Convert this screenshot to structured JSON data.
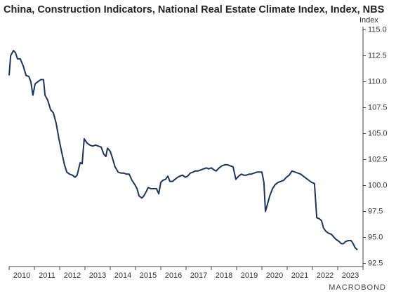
{
  "chart_data": {
    "type": "line",
    "title": "China, Construction Indicators, National Real Estate Climate Index, Index, NBS",
    "y_label": "Index",
    "source": "MACROBOND",
    "color": "#1d3557",
    "x": [
      2010.0,
      2010.06,
      2010.17,
      2010.25,
      2010.33,
      2010.44,
      2010.56,
      2010.67,
      2010.78,
      2010.86,
      2010.94,
      2011.03,
      2011.14,
      2011.25,
      2011.36,
      2011.42,
      2011.53,
      2011.64,
      2011.75,
      2011.86,
      2011.97,
      2012.08,
      2012.19,
      2012.28,
      2012.39,
      2012.5,
      2012.61,
      2012.69,
      2012.81,
      2012.89,
      2012.97,
      2013.08,
      2013.19,
      2013.31,
      2013.42,
      2013.53,
      2013.64,
      2013.75,
      2013.83,
      2013.89,
      2014.0,
      2014.08,
      2014.19,
      2014.31,
      2014.42,
      2014.53,
      2014.64,
      2014.75,
      2014.86,
      2014.97,
      2015.06,
      2015.14,
      2015.25,
      2015.33,
      2015.42,
      2015.5,
      2015.61,
      2015.72,
      2015.83,
      2015.92,
      2016.0,
      2016.08,
      2016.19,
      2016.28,
      2016.36,
      2016.47,
      2016.56,
      2016.67,
      2016.75,
      2016.86,
      2016.97,
      2017.06,
      2017.17,
      2017.28,
      2017.36,
      2017.47,
      2017.58,
      2017.69,
      2017.81,
      2017.89,
      2018.0,
      2018.11,
      2018.19,
      2018.31,
      2018.42,
      2018.53,
      2018.64,
      2018.75,
      2018.86,
      2018.97,
      2019.08,
      2019.19,
      2019.28,
      2019.39,
      2019.5,
      2019.58,
      2019.69,
      2019.81,
      2019.92,
      2020.0,
      2020.08,
      2020.14,
      2020.22,
      2020.31,
      2020.42,
      2020.53,
      2020.64,
      2020.75,
      2020.86,
      2020.97,
      2021.08,
      2021.19,
      2021.31,
      2021.42,
      2021.53,
      2021.64,
      2021.75,
      2021.86,
      2021.97,
      2022.08,
      2022.17,
      2022.28,
      2022.36,
      2022.44,
      2022.53,
      2022.64,
      2022.75,
      2022.86,
      2022.94,
      2023.06,
      2023.14,
      2023.22,
      2023.31,
      2023.42,
      2023.53,
      2023.61,
      2023.69,
      2023.78
    ],
    "values": [
      110.6,
      112.5,
      113.0,
      112.8,
      112.2,
      112.2,
      111.5,
      110.6,
      110.5,
      110.0,
      108.7,
      109.8,
      110.0,
      110.2,
      110.2,
      108.7,
      108.2,
      107.3,
      107.0,
      106.0,
      104.5,
      103.2,
      102.0,
      101.3,
      101.1,
      101.0,
      100.8,
      101.0,
      102.2,
      102.1,
      104.5,
      104.1,
      103.9,
      103.8,
      103.9,
      103.8,
      103.7,
      103.0,
      102.8,
      103.6,
      103.3,
      102.7,
      101.8,
      101.3,
      101.2,
      101.2,
      101.1,
      101.1,
      100.5,
      100.1,
      99.7,
      99.0,
      98.8,
      99.0,
      99.4,
      99.8,
      99.7,
      99.7,
      99.7,
      99.2,
      100.3,
      100.5,
      100.6,
      100.9,
      100.4,
      100.4,
      100.6,
      100.8,
      100.9,
      101.0,
      100.8,
      100.9,
      101.2,
      101.3,
      101.4,
      101.4,
      101.5,
      101.6,
      101.7,
      101.6,
      101.7,
      101.5,
      101.4,
      101.7,
      101.9,
      102.0,
      102.0,
      101.9,
      101.8,
      100.6,
      100.9,
      101.1,
      101.0,
      101.0,
      101.1,
      101.1,
      101.2,
      101.3,
      101.3,
      101.3,
      100.3,
      97.5,
      98.2,
      99.0,
      99.7,
      100.1,
      100.3,
      100.4,
      100.5,
      100.8,
      101.0,
      101.4,
      101.3,
      101.2,
      101.1,
      100.9,
      100.7,
      100.5,
      100.3,
      100.2,
      96.9,
      96.8,
      96.6,
      95.9,
      95.6,
      95.4,
      95.3,
      95.0,
      94.8,
      94.6,
      94.4,
      94.4,
      94.6,
      94.7,
      94.7,
      94.4,
      94.0,
      93.8
    ],
    "xlim": [
      2010,
      2024
    ],
    "xticks": [
      2010,
      2011,
      2012,
      2013,
      2014,
      2015,
      2016,
      2017,
      2018,
      2019,
      2020,
      2021,
      2022,
      2023
    ],
    "ylim": [
      92.2,
      115.3
    ],
    "yticks": [
      92.5,
      {
        "value": 95,
        "label": "95.0"
      },
      97.5,
      {
        "value": 100,
        "label": "100.0"
      },
      102.5,
      {
        "value": 105,
        "label": "105.0"
      },
      107.5,
      {
        "value": 110,
        "label": "110.0"
      },
      112.5,
      {
        "value": 115,
        "label": "115.0"
      }
    ],
    "grid": false
  }
}
